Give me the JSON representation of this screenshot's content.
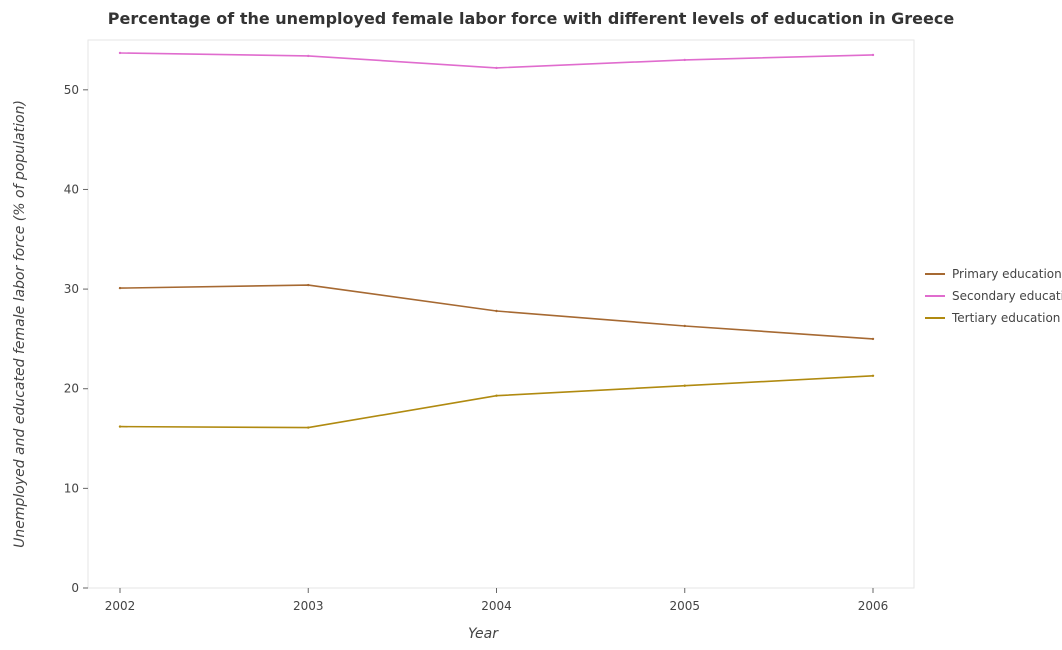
{
  "chart_data": {
    "type": "line",
    "title": "Percentage of the unemployed female labor force with different levels of education in Greece",
    "xlabel": "Year",
    "ylabel": "Unemployed and educated female labor force (% of population)",
    "categories": [
      "2002",
      "2003",
      "2004",
      "2005",
      "2006"
    ],
    "ylim": [
      0,
      55
    ],
    "yticks": [
      0,
      10,
      20,
      30,
      40,
      50
    ],
    "grid": false,
    "legend_position": "right",
    "series": [
      {
        "name": "Primary education",
        "color": "#a66932",
        "values": [
          30.1,
          30.4,
          27.8,
          26.3,
          25.0
        ]
      },
      {
        "name": "Secondary education",
        "color": "#e06cce",
        "values": [
          53.7,
          53.4,
          52.2,
          53.0,
          53.5
        ]
      },
      {
        "name": "Tertiary education",
        "color": "#b08a10",
        "values": [
          16.2,
          16.1,
          19.3,
          20.3,
          21.3
        ]
      }
    ]
  }
}
